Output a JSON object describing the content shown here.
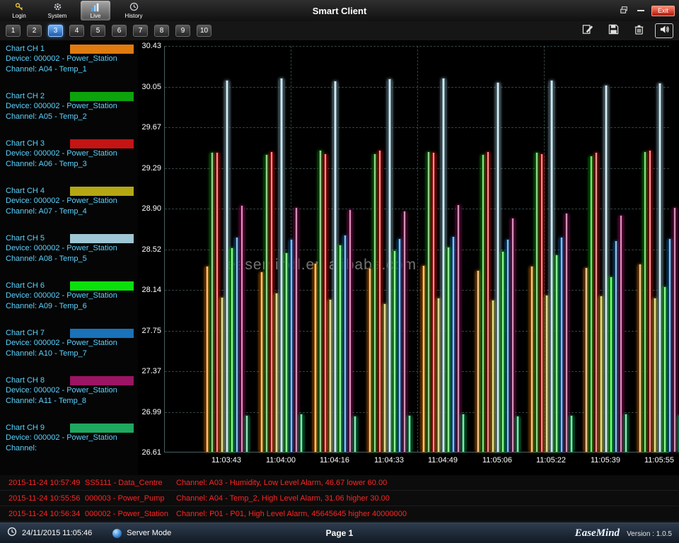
{
  "titlebar": {
    "title": "Smart Client",
    "nav": [
      {
        "label": "Login",
        "icon": "key-icon",
        "active": false
      },
      {
        "label": "System",
        "icon": "gear-icon",
        "active": false
      },
      {
        "label": "Live",
        "icon": "chart-icon",
        "active": true
      },
      {
        "label": "History",
        "icon": "clock-icon",
        "active": false
      }
    ],
    "window": {
      "exit_label": "Exit"
    }
  },
  "tabbar": {
    "tabs": [
      "1",
      "2",
      "3",
      "4",
      "5",
      "6",
      "7",
      "8",
      "9",
      "10"
    ],
    "active_tab": "3",
    "tools": [
      "edit-icon",
      "save-icon",
      "delete-icon",
      "sound-icon"
    ]
  },
  "sidebar": {
    "channels": [
      {
        "title": "Chart CH 1",
        "device": "Device: 000002 - Power_Station",
        "channel": "Channel: A04 - Temp_1",
        "color": "#e07b10"
      },
      {
        "title": "Chart CH 2",
        "device": "Device: 000002 - Power_Station",
        "channel": "Channel: A05 - Temp_2",
        "color": "#0da30d"
      },
      {
        "title": "Chart CH 3",
        "device": "Device: 000002 - Power_Station",
        "channel": "Channel: A06 - Temp_3",
        "color": "#c41414"
      },
      {
        "title": "Chart CH 4",
        "device": "Device: 000002 - Power_Station",
        "channel": "Channel: A07 - Temp_4",
        "color": "#b5a714"
      },
      {
        "title": "Chart CH 5",
        "device": "Device: 000002 - Power_Station",
        "channel": "Channel: A08 - Temp_5",
        "color": "#9fc6d4"
      },
      {
        "title": "Chart CH 6",
        "device": "Device: 000002 - Power_Station",
        "channel": "Channel: A09 - Temp_6",
        "color": "#0ce00c"
      },
      {
        "title": "Chart CH 7",
        "device": "Device: 000002 - Power_Station",
        "channel": "Channel: A10 - Temp_7",
        "color": "#1a72b8"
      },
      {
        "title": "Chart CH 8",
        "device": "Device: 000002 - Power_Station",
        "channel": "Channel: A11 - Temp_8",
        "color": "#9c1464"
      },
      {
        "title": "Chart CH 9",
        "device": "Device: 000002 - Power_Station",
        "channel": "Channel:",
        "color": "#1fa85f"
      }
    ]
  },
  "chart_data": {
    "type": "bar",
    "title": "",
    "xlabel": "",
    "ylabel": "",
    "ylim": [
      26.61,
      30.43
    ],
    "y_ticks": [
      30.43,
      30.05,
      29.67,
      29.29,
      28.9,
      28.52,
      28.14,
      27.75,
      27.37,
      26.99,
      26.61
    ],
    "x_labels": [
      "11:03:43",
      "11:04:00",
      "11:04:16",
      "11:04:33",
      "11:04:49",
      "11:05:06",
      "11:05:22",
      "11:05:39",
      "11:05:55"
    ],
    "grid": "dashed",
    "legend_position": "left-sidebar",
    "series": [
      {
        "name": "A04 - Temp_1",
        "color": "#e07b10",
        "values": [
          28.35,
          28.3,
          28.38,
          28.33,
          28.36,
          28.31,
          28.35,
          28.34,
          28.37
        ]
      },
      {
        "name": "A05 - Temp_2",
        "color": "#0da30d",
        "values": [
          29.42,
          29.4,
          29.44,
          29.41,
          29.43,
          29.4,
          29.42,
          29.39,
          29.43
        ]
      },
      {
        "name": "A06 - Temp_3",
        "color": "#c41414",
        "values": [
          29.42,
          29.43,
          29.41,
          29.44,
          29.42,
          29.43,
          29.41,
          29.42,
          29.44
        ]
      },
      {
        "name": "A07 - Temp_4",
        "color": "#b5a714",
        "values": [
          28.06,
          28.1,
          28.04,
          28.0,
          28.05,
          28.03,
          28.08,
          28.07,
          28.05
        ]
      },
      {
        "name": "A08 - Temp_5",
        "color": "#9fc6d4",
        "values": [
          30.1,
          30.12,
          30.09,
          30.11,
          30.12,
          30.08,
          30.1,
          30.05,
          30.07
        ]
      },
      {
        "name": "A09 - Temp_6",
        "color": "#0ce00c",
        "values": [
          28.52,
          28.48,
          28.55,
          28.5,
          28.53,
          28.49,
          28.46,
          28.25,
          28.16
        ]
      },
      {
        "name": "A10 - Temp_7",
        "color": "#1a72b8",
        "values": [
          28.62,
          28.6,
          28.64,
          28.61,
          28.63,
          28.6,
          28.62,
          28.59,
          28.61
        ]
      },
      {
        "name": "A11 - Temp_8",
        "color": "#9c1464",
        "values": [
          28.92,
          28.9,
          28.88,
          28.87,
          28.93,
          28.8,
          28.85,
          28.83,
          28.9
        ]
      },
      {
        "name": "CH 9",
        "color": "#1fa85f",
        "values": [
          26.95,
          26.96,
          26.94,
          26.95,
          26.96,
          26.94,
          26.95,
          26.96,
          26.95
        ]
      }
    ]
  },
  "watermark": "easemindl.en.alibaba.com",
  "alarms": [
    {
      "time": "2015-11-24 10:57:49",
      "device": "SS5111 - Data_Centre",
      "message": "Channel: A03 - Humidity, Low Level Alarm, 46.67 lower 60.00"
    },
    {
      "time": "2015-11-24 10:55:56",
      "device": "000003 - Power_Pump",
      "message": "Channel: A04 - Temp_2, High Level Alarm, 31.06 higher 30.00"
    },
    {
      "time": "2015-11-24 10:56:34",
      "device": "000002 - Power_Station",
      "message": "Channel: P01 - P01, High Level Alarm, 45645645 higher 40000000"
    }
  ],
  "statusbar": {
    "datetime": "24/11/2015 11:05:46",
    "mode": "Server Mode",
    "page": "Page 1",
    "brand": "EaseMind",
    "version": "Version : 1.0.5"
  },
  "colors": {
    "accent_blue": "#2f7fd6",
    "alarm_red": "#ff2424",
    "sidebar_text": "#5cd3ff"
  }
}
